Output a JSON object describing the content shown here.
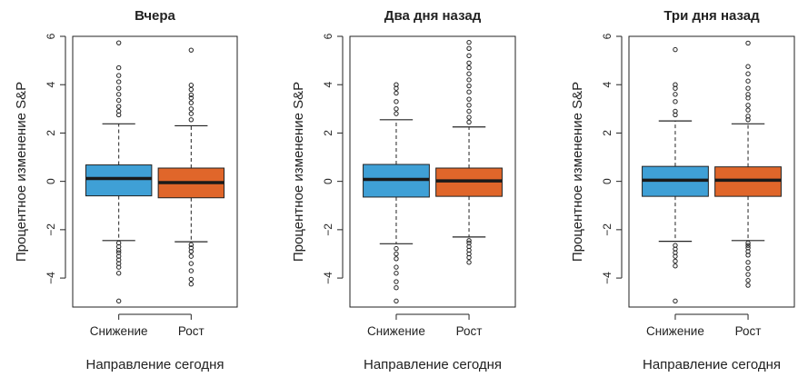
{
  "colors": {
    "down": "#3fa0d6",
    "up": "#e0662a"
  },
  "chart_data": [
    {
      "type": "boxplot",
      "title": "Вчера",
      "xlabel": "Направление сегодня",
      "ylabel": "Процентное изменение S&P",
      "ylim": [
        -5.2,
        6.0
      ],
      "yticks": [
        -4,
        -2,
        0,
        2,
        4,
        6
      ],
      "ytick_labels": [
        "−4",
        "−2",
        "0",
        "2",
        "4",
        "6"
      ],
      "categories": [
        "Снижение",
        "Рост"
      ],
      "boxes": [
        {
          "q1": -0.6,
          "median": 0.12,
          "q3": 0.68,
          "whisker_low": -2.45,
          "whisker_high": 2.38,
          "outliers": [
            5.73,
            4.7,
            4.38,
            4.12,
            3.85,
            3.6,
            3.35,
            3.1,
            2.9,
            2.75,
            -2.55,
            -2.7,
            -2.85,
            -2.95,
            -3.1,
            -3.25,
            -3.4,
            -3.55,
            -3.8,
            -4.95
          ]
        },
        {
          "q1": -0.68,
          "median": -0.05,
          "q3": 0.55,
          "whisker_low": -2.5,
          "whisker_high": 2.3,
          "outliers": [
            5.43,
            3.98,
            3.8,
            3.58,
            3.45,
            3.25,
            3.0,
            2.8,
            2.55,
            -2.62,
            -2.75,
            -2.9,
            -3.1,
            -3.4,
            -3.7,
            -4.05,
            -4.25
          ]
        }
      ]
    },
    {
      "type": "boxplot",
      "title": "Два дня назад",
      "xlabel": "Направление сегодня",
      "ylabel": "Процентное изменение S&P",
      "ylim": [
        -5.2,
        6.0
      ],
      "yticks": [
        -4,
        -2,
        0,
        2,
        4,
        6
      ],
      "ytick_labels": [
        "−4",
        "−2",
        "0",
        "2",
        "4",
        "6"
      ],
      "categories": [
        "Снижение",
        "Рост"
      ],
      "boxes": [
        {
          "q1": -0.65,
          "median": 0.08,
          "q3": 0.7,
          "whisker_low": -2.58,
          "whisker_high": 2.55,
          "outliers": [
            4.0,
            3.85,
            3.65,
            3.3,
            3.0,
            2.8,
            -2.78,
            -3.0,
            -3.2,
            -3.55,
            -3.8,
            -4.15,
            -4.4,
            -4.95
          ]
        },
        {
          "q1": -0.62,
          "median": 0.02,
          "q3": 0.55,
          "whisker_low": -2.3,
          "whisker_high": 2.25,
          "outliers": [
            5.75,
            5.5,
            5.2,
            4.9,
            4.7,
            4.45,
            4.2,
            3.95,
            3.7,
            3.4,
            3.15,
            2.9,
            2.65,
            2.45,
            -2.45,
            -2.55,
            -2.7,
            -2.85,
            -3.0,
            -3.15,
            -3.35
          ]
        }
      ]
    },
    {
      "type": "boxplot",
      "title": "Три дня назад",
      "xlabel": "Направление сегодня",
      "ylabel": "Процентное изменение S&P",
      "ylim": [
        -5.2,
        6.0
      ],
      "yticks": [
        -4,
        -2,
        0,
        2,
        4,
        6
      ],
      "ytick_labels": [
        "−4",
        "−2",
        "0",
        "2",
        "4",
        "6"
      ],
      "categories": [
        "Снижение",
        "Рост"
      ],
      "boxes": [
        {
          "q1": -0.62,
          "median": 0.05,
          "q3": 0.62,
          "whisker_low": -2.48,
          "whisker_high": 2.5,
          "outliers": [
            5.45,
            4.0,
            3.85,
            3.6,
            3.3,
            2.9,
            2.75,
            -2.65,
            -2.8,
            -2.95,
            -3.1,
            -3.3,
            -3.5,
            -4.95
          ]
        },
        {
          "q1": -0.62,
          "median": 0.05,
          "q3": 0.6,
          "whisker_low": -2.45,
          "whisker_high": 2.38,
          "outliers": [
            5.72,
            4.75,
            4.45,
            4.15,
            3.85,
            3.6,
            3.45,
            3.15,
            2.95,
            2.7,
            2.55,
            -2.55,
            -2.65,
            -2.75,
            -2.9,
            -3.05,
            -3.35,
            -3.6,
            -3.85,
            -4.1,
            -4.3
          ]
        }
      ]
    }
  ]
}
